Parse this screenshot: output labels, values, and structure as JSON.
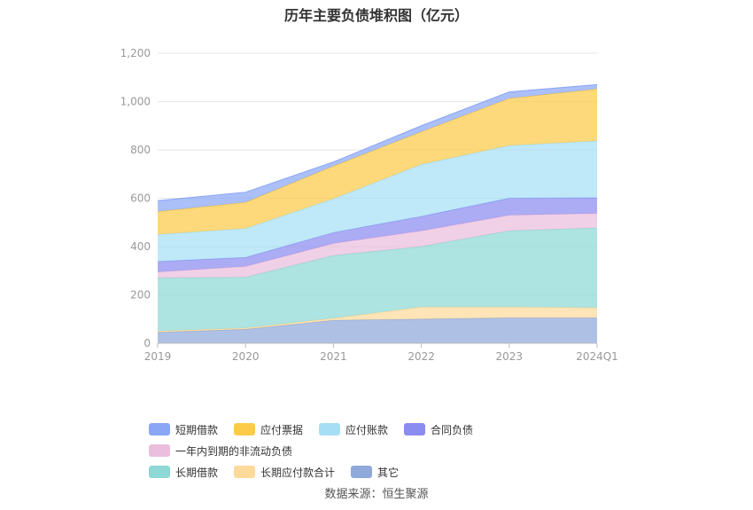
{
  "chart_data": {
    "type": "area",
    "stacked": true,
    "title": "历年主要负债堆积图（亿元）",
    "categories": [
      "2019",
      "2020",
      "2021",
      "2022",
      "2023",
      "2024Q1"
    ],
    "ylim": [
      0,
      1200
    ],
    "yticks": [
      "0",
      "200",
      "400",
      "600",
      "800",
      "1,000",
      "1,200"
    ],
    "ytick_values": [
      0,
      200,
      400,
      600,
      800,
      1000,
      1200
    ],
    "grid": true,
    "legend_position": "bottom",
    "series": [
      {
        "name": "其它",
        "color": "#8fa9db",
        "values": [
          45,
          58,
          95,
          100,
          105,
          105
        ]
      },
      {
        "name": "长期应付款合计",
        "color": "#fdd99a",
        "values": [
          5,
          5,
          8,
          50,
          45,
          42
        ]
      },
      {
        "name": "长期借款",
        "color": "#8ed8d6",
        "values": [
          220,
          210,
          260,
          250,
          315,
          330
        ]
      },
      {
        "name": "一年内到期的非流动负债",
        "color": "#eabedc",
        "values": [
          25,
          45,
          50,
          65,
          65,
          60
        ]
      },
      {
        "name": "合同负债",
        "color": "#8b8cf0",
        "values": [
          43,
          37,
          45,
          60,
          70,
          65
        ]
      },
      {
        "name": "应付账款",
        "color": "#a6dff5",
        "values": [
          112,
          120,
          140,
          215,
          218,
          235
        ]
      },
      {
        "name": "应付票据",
        "color": "#fccb48",
        "values": [
          95,
          108,
          135,
          135,
          195,
          215
        ]
      },
      {
        "name": "短期借款",
        "color": "#8aa6f5",
        "values": [
          45,
          42,
          17,
          25,
          27,
          18
        ]
      }
    ]
  },
  "legend": {
    "row1": [
      {
        "label": "短期借款",
        "color": "#8aa6f5"
      },
      {
        "label": "应付票据",
        "color": "#fccb48"
      },
      {
        "label": "应付账款",
        "color": "#a6dff5"
      },
      {
        "label": "合同负债",
        "color": "#8b8cf0"
      },
      {
        "label": "一年内到期的非流动负债",
        "color": "#eabedc"
      }
    ],
    "row2": [
      {
        "label": "长期借款",
        "color": "#8ed8d6"
      },
      {
        "label": "长期应付款合计",
        "color": "#fdd99a"
      },
      {
        "label": "其它",
        "color": "#8fa9db"
      }
    ]
  },
  "source_text": "数据来源：恒生聚源"
}
